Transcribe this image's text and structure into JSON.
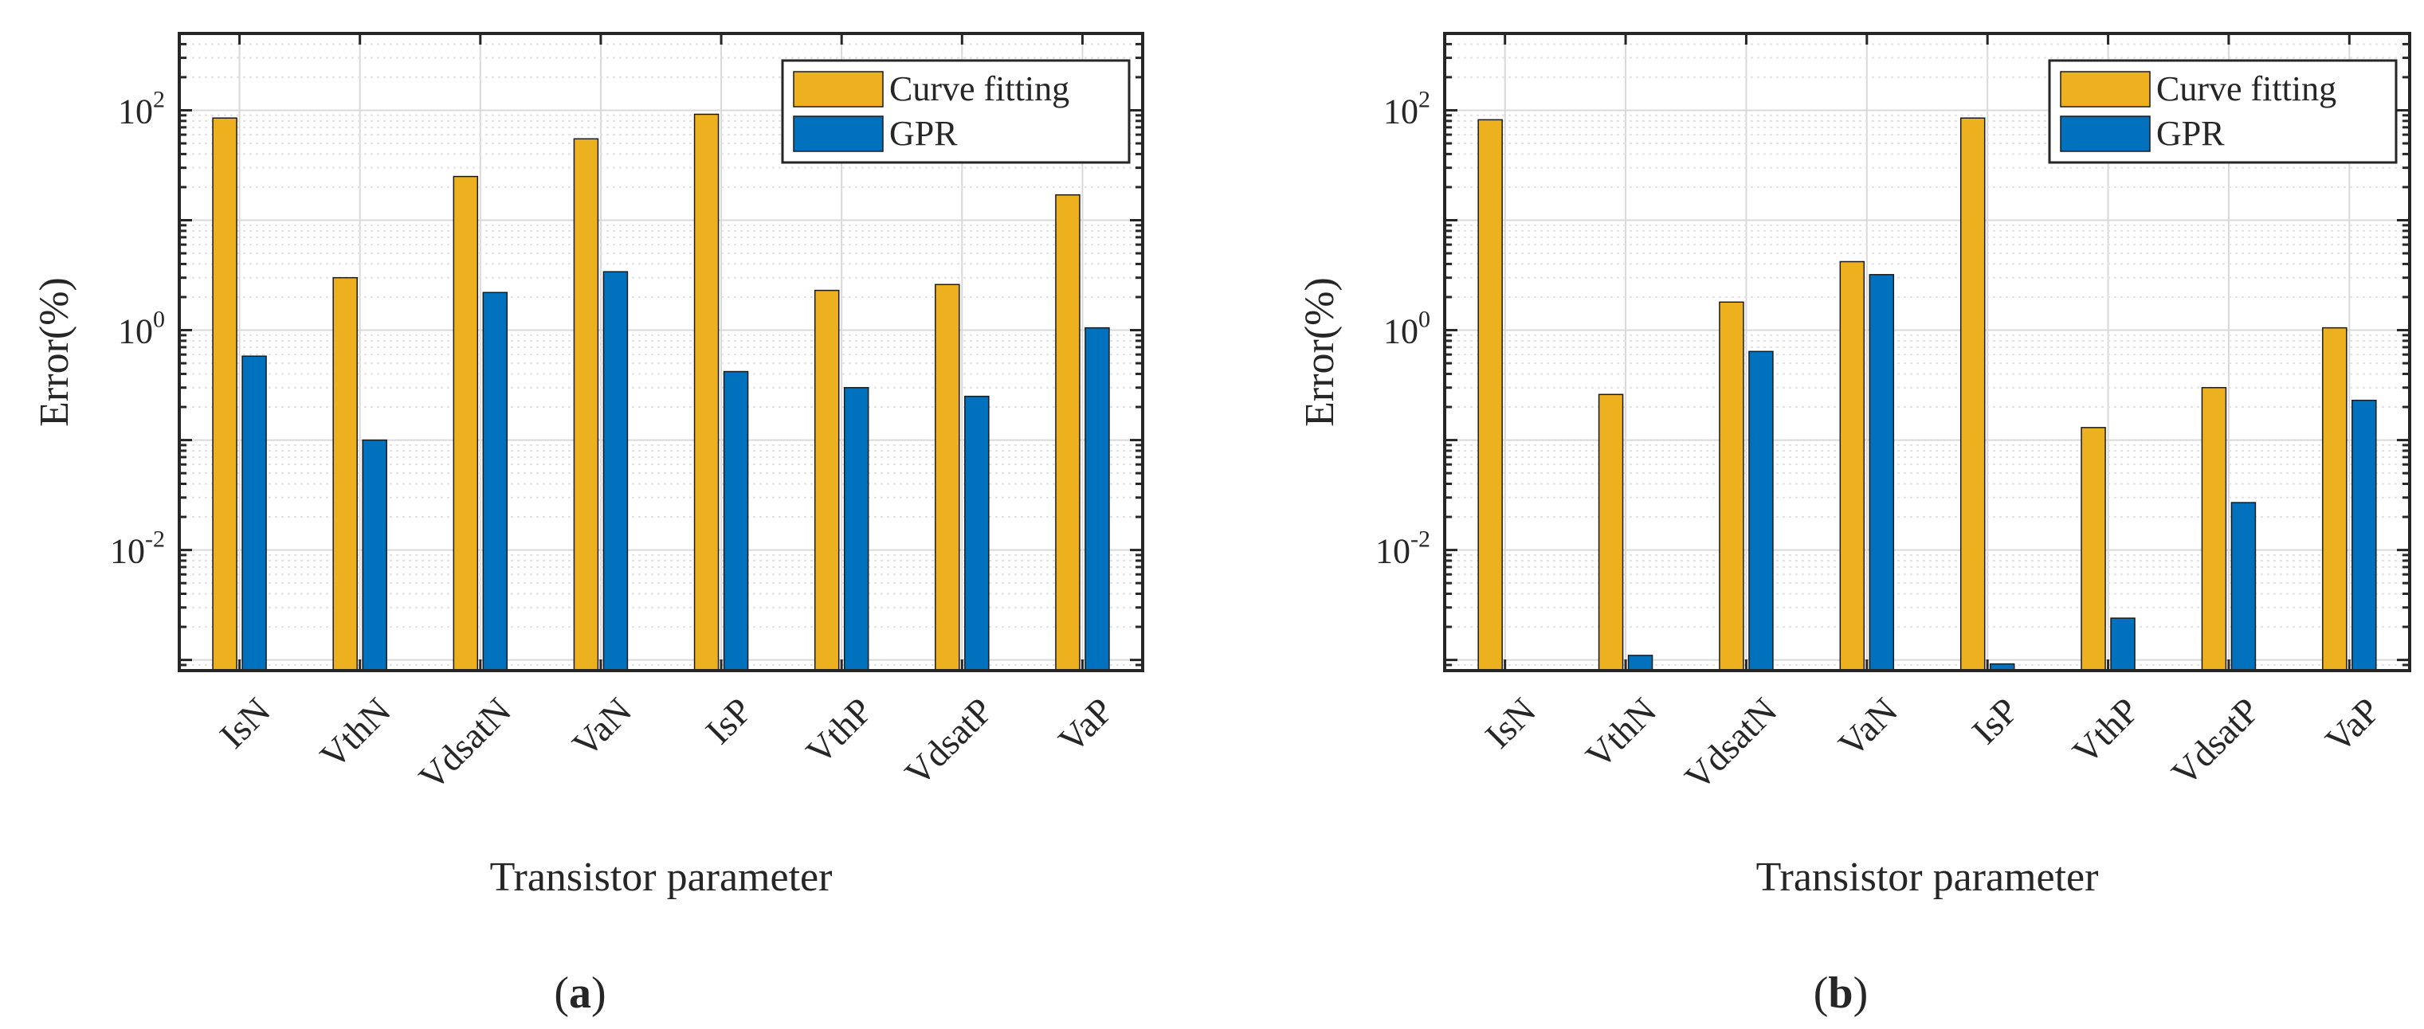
{
  "figure": {
    "series_colors": {
      "Curve fitting": "#EDB120",
      "GPR": "#0072BD"
    }
  },
  "chart_data": [
    {
      "panel_label": "a",
      "type": "bar",
      "ylabel": "Error(%)",
      "xlabel": "Transistor parameter",
      "yscale": "log",
      "ylim": [
        0.0008,
        500
      ],
      "yticks": [
        {
          "base": "10",
          "exp": "2",
          "value": 100
        },
        {
          "base": "10",
          "exp": "0",
          "value": 1
        },
        {
          "base": "10",
          "exp": "-2",
          "value": 0.01
        }
      ],
      "grid": true,
      "legend_position": "top-right",
      "categories": [
        "IsN",
        "VthN",
        "VdsatN",
        "VaN",
        "IsP",
        "VthP",
        "VdsatP",
        "VaP"
      ],
      "series": [
        {
          "name": "Curve fitting",
          "color": "#EDB120",
          "values": [
            85,
            3.0,
            25,
            55,
            92,
            2.3,
            2.6,
            17
          ]
        },
        {
          "name": "GPR",
          "color": "#0072BD",
          "values": [
            0.58,
            0.1,
            2.2,
            3.4,
            0.42,
            0.3,
            0.25,
            1.05
          ]
        }
      ]
    },
    {
      "panel_label": "b",
      "type": "bar",
      "ylabel": "Error(%)",
      "xlabel": "Transistor parameter",
      "yscale": "log",
      "ylim": [
        0.0008,
        500
      ],
      "yticks": [
        {
          "base": "10",
          "exp": "2",
          "value": 100
        },
        {
          "base": "10",
          "exp": "0",
          "value": 1
        },
        {
          "base": "10",
          "exp": "-2",
          "value": 0.01
        }
      ],
      "grid": true,
      "legend_position": "top-right",
      "categories": [
        "IsN",
        "VthN",
        "VdsatN",
        "VaN",
        "IsP",
        "VthP",
        "VdsatP",
        "VaP"
      ],
      "series": [
        {
          "name": "Curve fitting",
          "color": "#EDB120",
          "values": [
            82,
            0.26,
            1.8,
            4.2,
            85,
            0.13,
            0.3,
            1.05
          ]
        },
        {
          "name": "GPR",
          "color": "#0072BD",
          "values": [
            null,
            0.0011,
            0.64,
            3.2,
            0.00092,
            0.0024,
            0.027,
            0.23
          ]
        }
      ]
    }
  ]
}
